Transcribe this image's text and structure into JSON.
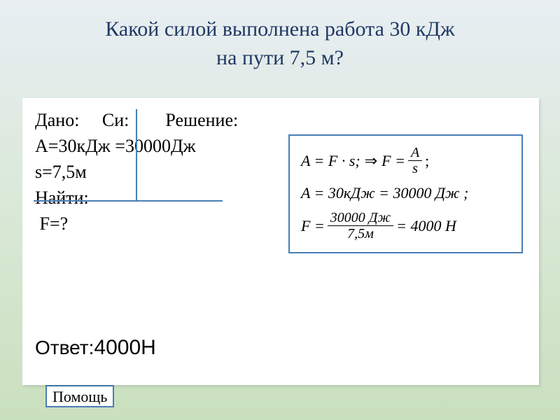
{
  "colors": {
    "title": "#1f3864",
    "line": "#4a7fb5",
    "bg_top": "#e8eef3",
    "bg_mid": "#d8e8d4",
    "bg_bot": "#c9e0be",
    "card_bg": "#ffffff"
  },
  "title": {
    "line1": "Какой силой выполнена работа 30 кДж",
    "line2": "на пути 7,5 м?"
  },
  "given": {
    "header_given": "Дано:",
    "header_si": "Си:",
    "header_solution": "Решение:",
    "row_A": "А=30кДж",
    "row_A_si": "=30000Дж",
    "row_s": "s=7,5м",
    "find_label": "Найти:",
    "find_value": " F=?"
  },
  "solution": {
    "eq1_lhs": "A = F · s;",
    "eq1_arrow": "⇒",
    "eq1_rhs_pre": "F =",
    "frac1_num": "A",
    "frac1_den": "s",
    "eq2": "A = 30кДж = 30000 Дж ;",
    "eq3_pre": "F =",
    "frac2_num": "30000 Дж",
    "frac2_den": "7,5м",
    "eq3_post": "= 4000 Н"
  },
  "answer": {
    "label": "Ответ:",
    "value": "4000Н"
  },
  "help_fragment": "Помощь"
}
